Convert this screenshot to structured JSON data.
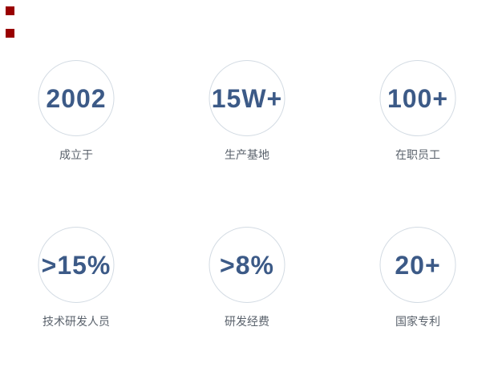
{
  "page": {
    "background_color": "#ffffff",
    "accent_color": "#3c5a87",
    "label_color": "#59616b",
    "circle_border_color": "#d3dbe3",
    "marker_color": "#990000"
  },
  "markers": {
    "description": "two small dark-red square placeholders at top-left"
  },
  "stats": {
    "items": [
      {
        "value": "2002",
        "label": "成立于"
      },
      {
        "value": "15W+",
        "label": "生产基地"
      },
      {
        "value": "100+",
        "label": "在职员工"
      },
      {
        "value": ">15%",
        "label": "技术研发人员"
      },
      {
        "value": ">8%",
        "label": "研发经费"
      },
      {
        "value": "20+",
        "label": "国家专利"
      }
    ]
  }
}
